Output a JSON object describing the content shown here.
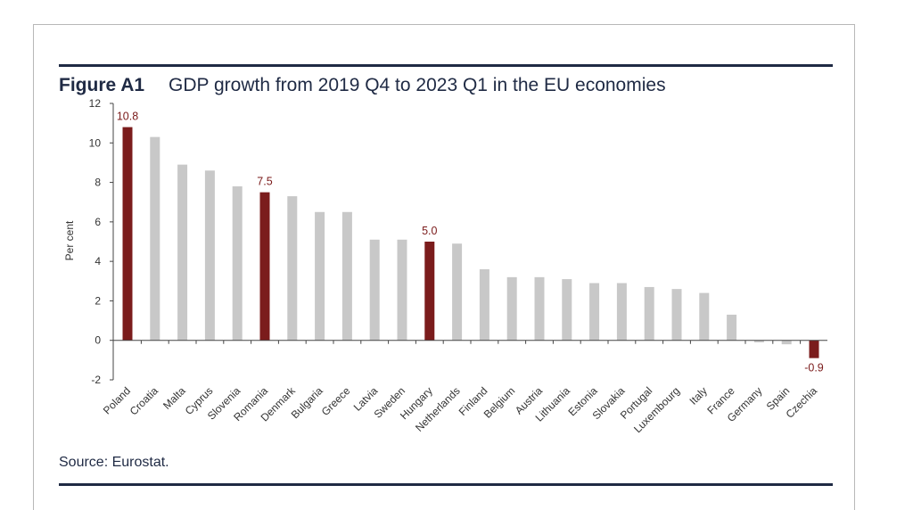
{
  "figure": {
    "label": "Figure A1",
    "title": "GDP growth from 2019 Q4 to 2023 Q1 in the EU economies",
    "source": "Source: Eurostat."
  },
  "colors": {
    "highlight": "#7b1c1c",
    "default": "#c8c8c8",
    "label": "#7a1a1a",
    "rule": "#1f2a44"
  },
  "chart_data": {
    "type": "bar",
    "title": "GDP growth from 2019 Q4 to 2023 Q1 in the EU economies",
    "xlabel": "",
    "ylabel": "Per cent",
    "ylim": [
      -2,
      12
    ],
    "yticks": [
      -2,
      0,
      2,
      4,
      6,
      8,
      10,
      12
    ],
    "grid": false,
    "categories": [
      "Poland",
      "Croatia",
      "Malta",
      "Cyprus",
      "Slovenia",
      "Romania",
      "Denmark",
      "Bulgaria",
      "Greece",
      "Latvia",
      "Sweden",
      "Hungary",
      "Netherlands",
      "Finland",
      "Belgium",
      "Austria",
      "Lithuania",
      "Estonia",
      "Slovakia",
      "Portugal",
      "Luxembourg",
      "Italy",
      "France",
      "Germany",
      "Spain",
      "Czechia"
    ],
    "values": [
      10.8,
      10.3,
      8.9,
      8.6,
      7.8,
      7.5,
      7.3,
      6.5,
      6.5,
      5.1,
      5.1,
      5.0,
      4.9,
      3.6,
      3.2,
      3.2,
      3.1,
      2.9,
      2.9,
      2.7,
      2.6,
      2.4,
      1.3,
      -0.1,
      -0.2,
      -0.9
    ],
    "highlighted": [
      "Poland",
      "Romania",
      "Hungary",
      "Czechia"
    ],
    "data_labels": [
      {
        "category": "Poland",
        "text": "10.8"
      },
      {
        "category": "Romania",
        "text": "7.5"
      },
      {
        "category": "Hungary",
        "text": "5.0"
      },
      {
        "category": "Czechia",
        "text": "-0.9"
      }
    ]
  }
}
